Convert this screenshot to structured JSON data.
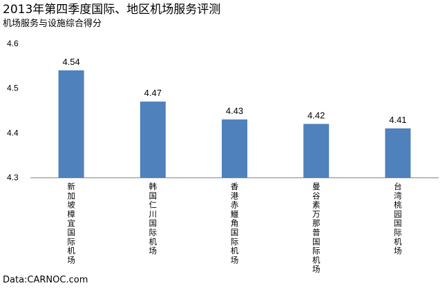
{
  "chart_data": {
    "type": "bar",
    "title": "2013年第四季度国际、地区机场服务评测",
    "subtitle": "机场服务与设施综合得分",
    "source": "Data:CARNOC.com",
    "categories": [
      "新加坡樟宜国际机场",
      "韩国仁川国际机场",
      "香港赤鱲角国际机场",
      "曼谷素万那普国际机场",
      "台湾桃园国际机场"
    ],
    "values": [
      4.54,
      4.47,
      4.43,
      4.42,
      4.41
    ],
    "data_labels": [
      "4.54",
      "4.47",
      "4.43",
      "4.42",
      "4.41"
    ],
    "yticks": [
      "4.3",
      "4.4",
      "4.5",
      "4.6"
    ],
    "ylim": [
      4.3,
      4.6
    ],
    "xlabel": "",
    "ylabel": "",
    "bar_color": "#4f81bd",
    "grid": false,
    "legend": "none"
  }
}
